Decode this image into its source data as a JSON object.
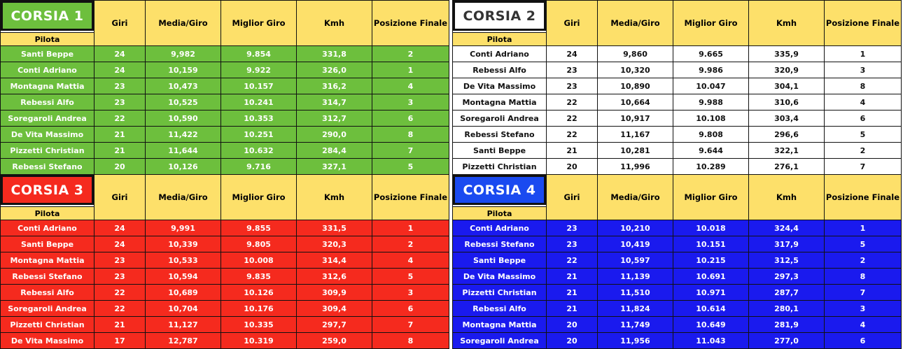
{
  "headers": {
    "pilota": "Pilota",
    "giri": "Giri",
    "media": "Media/Giro",
    "best": "Miglior Giro",
    "kmh": "Kmh",
    "pos": "Posizione Finale"
  },
  "colors": {
    "green": "#6dbf3d",
    "white": "#ffffff",
    "red": "#f52a1e",
    "blue": "#1a1aee",
    "header": "#fde06a"
  },
  "panels": [
    {
      "title": "CORSIA 1",
      "theme": "green",
      "rows": [
        {
          "pilota": "Santi Beppe",
          "giri": "24",
          "media": "9,982",
          "best": "9.854",
          "kmh": "331,8",
          "pos": "2"
        },
        {
          "pilota": "Conti Adriano",
          "giri": "24",
          "media": "10,159",
          "best": "9.922",
          "kmh": "326,0",
          "pos": "1"
        },
        {
          "pilota": "Montagna Mattia",
          "giri": "23",
          "media": "10,473",
          "best": "10.157",
          "kmh": "316,2",
          "pos": "4"
        },
        {
          "pilota": "Rebessi Alfo",
          "giri": "23",
          "media": "10,525",
          "best": "10.241",
          "kmh": "314,7",
          "pos": "3"
        },
        {
          "pilota": "Soregaroli Andrea",
          "giri": "22",
          "media": "10,590",
          "best": "10.353",
          "kmh": "312,7",
          "pos": "6"
        },
        {
          "pilota": "De Vita Massimo",
          "giri": "21",
          "media": "11,422",
          "best": "10.251",
          "kmh": "290,0",
          "pos": "8"
        },
        {
          "pilota": "Pizzetti Christian",
          "giri": "21",
          "media": "11,644",
          "best": "10.632",
          "kmh": "284,4",
          "pos": "7"
        },
        {
          "pilota": "Rebessi Stefano",
          "giri": "20",
          "media": "10,126",
          "best": "9.716",
          "kmh": "327,1",
          "pos": "5"
        }
      ]
    },
    {
      "title": "CORSIA 2",
      "theme": "white",
      "rows": [
        {
          "pilota": "Conti Adriano",
          "giri": "24",
          "media": "9,860",
          "best": "9.665",
          "kmh": "335,9",
          "pos": "1"
        },
        {
          "pilota": "Rebessi Alfo",
          "giri": "23",
          "media": "10,320",
          "best": "9.986",
          "kmh": "320,9",
          "pos": "3"
        },
        {
          "pilota": "De Vita Massimo",
          "giri": "23",
          "media": "10,890",
          "best": "10.047",
          "kmh": "304,1",
          "pos": "8"
        },
        {
          "pilota": "Montagna Mattia",
          "giri": "22",
          "media": "10,664",
          "best": "9.988",
          "kmh": "310,6",
          "pos": "4"
        },
        {
          "pilota": "Soregaroli Andrea",
          "giri": "22",
          "media": "10,917",
          "best": "10.108",
          "kmh": "303,4",
          "pos": "6"
        },
        {
          "pilota": "Rebessi Stefano",
          "giri": "22",
          "media": "11,167",
          "best": "9.808",
          "kmh": "296,6",
          "pos": "5"
        },
        {
          "pilota": "Santi Beppe",
          "giri": "21",
          "media": "10,281",
          "best": "9.644",
          "kmh": "322,1",
          "pos": "2"
        },
        {
          "pilota": "Pizzetti Christian",
          "giri": "20",
          "media": "11,996",
          "best": "10.289",
          "kmh": "276,1",
          "pos": "7"
        }
      ]
    },
    {
      "title": "CORSIA 3",
      "theme": "red",
      "rows": [
        {
          "pilota": "Conti Adriano",
          "giri": "24",
          "media": "9,991",
          "best": "9.855",
          "kmh": "331,5",
          "pos": "1"
        },
        {
          "pilota": "Santi Beppe",
          "giri": "24",
          "media": "10,339",
          "best": "9.805",
          "kmh": "320,3",
          "pos": "2"
        },
        {
          "pilota": "Montagna Mattia",
          "giri": "23",
          "media": "10,533",
          "best": "10.008",
          "kmh": "314,4",
          "pos": "4"
        },
        {
          "pilota": "Rebessi Stefano",
          "giri": "23",
          "media": "10,594",
          "best": "9.835",
          "kmh": "312,6",
          "pos": "5"
        },
        {
          "pilota": "Rebessi Alfo",
          "giri": "22",
          "media": "10,689",
          "best": "10.126",
          "kmh": "309,9",
          "pos": "3"
        },
        {
          "pilota": "Soregaroli Andrea",
          "giri": "22",
          "media": "10,704",
          "best": "10.176",
          "kmh": "309,4",
          "pos": "6"
        },
        {
          "pilota": "Pizzetti Christian",
          "giri": "21",
          "media": "11,127",
          "best": "10.335",
          "kmh": "297,7",
          "pos": "7"
        },
        {
          "pilota": "De Vita Massimo",
          "giri": "17",
          "media": "12,787",
          "best": "10.319",
          "kmh": "259,0",
          "pos": "8"
        }
      ]
    },
    {
      "title": "CORSIA 4",
      "theme": "blue",
      "rows": [
        {
          "pilota": "Conti Adriano",
          "giri": "23",
          "media": "10,210",
          "best": "10.018",
          "kmh": "324,4",
          "pos": "1"
        },
        {
          "pilota": "Rebessi Stefano",
          "giri": "23",
          "media": "10,419",
          "best": "10.151",
          "kmh": "317,9",
          "pos": "5"
        },
        {
          "pilota": "Santi Beppe",
          "giri": "22",
          "media": "10,597",
          "best": "10.215",
          "kmh": "312,5",
          "pos": "2"
        },
        {
          "pilota": "De Vita Massimo",
          "giri": "21",
          "media": "11,139",
          "best": "10.691",
          "kmh": "297,3",
          "pos": "8"
        },
        {
          "pilota": "Pizzetti Christian",
          "giri": "21",
          "media": "11,510",
          "best": "10.971",
          "kmh": "287,7",
          "pos": "7"
        },
        {
          "pilota": "Rebessi Alfo",
          "giri": "21",
          "media": "11,824",
          "best": "10.614",
          "kmh": "280,1",
          "pos": "3"
        },
        {
          "pilota": "Montagna Mattia",
          "giri": "20",
          "media": "11,749",
          "best": "10.649",
          "kmh": "281,9",
          "pos": "4"
        },
        {
          "pilota": "Soregaroli Andrea",
          "giri": "20",
          "media": "11,956",
          "best": "11.043",
          "kmh": "277,0",
          "pos": "6"
        }
      ]
    }
  ]
}
